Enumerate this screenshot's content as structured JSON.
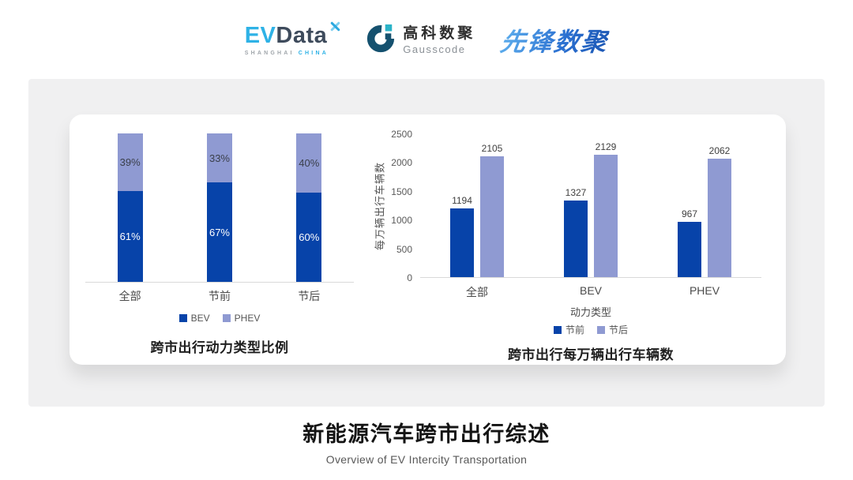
{
  "header": {
    "evdata": {
      "ev": "EV",
      "data": "Data",
      "sub1": "SHANGHAI",
      "sub2": "CHINA"
    },
    "gausscode": {
      "cn": "高科数聚",
      "en": "Gausscode"
    },
    "xianfeng": "先锋数聚"
  },
  "chart_data": [
    {
      "type": "bar",
      "variant": "stacked-percent",
      "title": "跨市出行动力类型比例",
      "categories": [
        "全部",
        "节前",
        "节后"
      ],
      "series": [
        {
          "name": "BEV",
          "color": "#0743a9",
          "values": [
            61,
            67,
            60
          ]
        },
        {
          "name": "PHEV",
          "color": "#8f9ad2",
          "values": [
            39,
            33,
            40
          ]
        }
      ],
      "value_suffix": "%",
      "ylim": [
        0,
        100
      ],
      "grid": false,
      "legend_position": "bottom"
    },
    {
      "type": "bar",
      "variant": "grouped",
      "title": "跨市出行每万辆出行车辆数",
      "xlabel": "动力类型",
      "ylabel": "每万辆出行车辆数",
      "categories": [
        "全部",
        "BEV",
        "PHEV"
      ],
      "series": [
        {
          "name": "节前",
          "color": "#0743a9",
          "values": [
            1194,
            1327,
            967
          ]
        },
        {
          "name": "节后",
          "color": "#8f9ad2",
          "values": [
            2105,
            2129,
            2062
          ]
        }
      ],
      "yticks": [
        0,
        500,
        1000,
        1500,
        2000,
        2500
      ],
      "ylim": [
        0,
        2500
      ],
      "grid": false,
      "legend_position": "bottom"
    }
  ],
  "footer": {
    "title": "新能源汽车跨市出行综述",
    "subtitle": "Overview of EV Intercity Transportation"
  },
  "colors": {
    "series_dark": "#0743a9",
    "series_light": "#8f9ad2",
    "card_bg": "#f0f0f1",
    "axis_line": "#d9d9d9"
  }
}
